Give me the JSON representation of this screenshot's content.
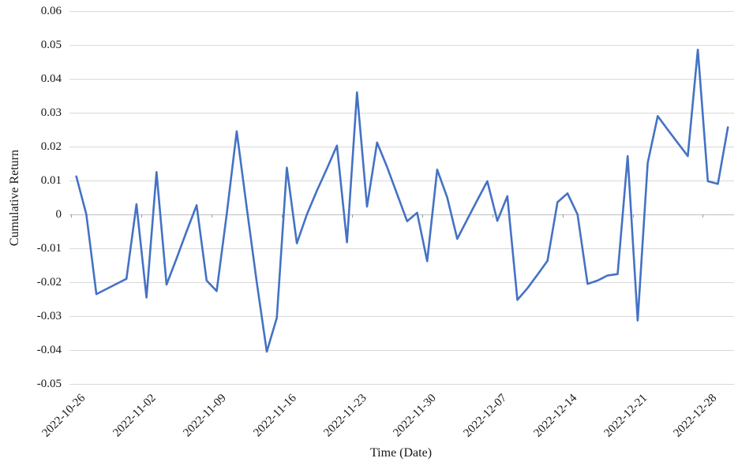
{
  "chart_data": {
    "type": "line",
    "title": "",
    "xlabel": "Time (Date)",
    "ylabel": "Cumulative Return",
    "legend": "none",
    "grid": "horizontal",
    "ylim": [
      -0.05,
      0.06
    ],
    "ytick_step": 0.01,
    "y_tick_labels": [
      "0.06",
      "0.05",
      "0.04",
      "0.03",
      "0.02",
      "0.01",
      "0",
      "-0.01",
      "-0.02",
      "-0.03",
      "-0.04",
      "-0.05"
    ],
    "x_tick_labels": [
      "2022-10-26",
      "2022-11-02",
      "2022-11-09",
      "2022-11-16",
      "2022-11-23",
      "2022-11-30",
      "2022-12-07",
      "2022-12-14",
      "2022-12-21",
      "2022-12-28"
    ],
    "line_color": "#4472C4",
    "gridline_color": "#D9D9D9",
    "zero_axis_color": "#BFBFBF",
    "background": "#FFFFFF",
    "x": [
      "2022-10-26",
      "2022-10-27",
      "2022-10-28",
      "2022-10-29",
      "2022-10-30",
      "2022-10-31",
      "2022-11-01",
      "2022-11-02",
      "2022-11-03",
      "2022-11-04",
      "2022-11-05",
      "2022-11-06",
      "2022-11-07",
      "2022-11-08",
      "2022-11-09",
      "2022-11-10",
      "2022-11-11",
      "2022-11-12",
      "2022-11-13",
      "2022-11-14",
      "2022-11-15",
      "2022-11-16",
      "2022-11-17",
      "2022-11-18",
      "2022-11-19",
      "2022-11-20",
      "2022-11-21",
      "2022-11-22",
      "2022-11-23",
      "2022-11-24",
      "2022-11-25",
      "2022-11-26",
      "2022-11-27",
      "2022-11-28",
      "2022-11-29",
      "2022-11-30",
      "2022-12-01",
      "2022-12-02",
      "2022-12-03",
      "2022-12-04",
      "2022-12-05",
      "2022-12-06",
      "2022-12-07",
      "2022-12-08",
      "2022-12-09",
      "2022-12-10",
      "2022-12-11",
      "2022-12-12",
      "2022-12-13",
      "2022-12-14",
      "2022-12-15",
      "2022-12-16",
      "2022-12-17",
      "2022-12-18",
      "2022-12-19",
      "2022-12-20",
      "2022-12-21",
      "2022-12-22",
      "2022-12-23",
      "2022-12-24",
      "2022-12-25",
      "2022-12-26",
      "2022-12-27",
      "2022-12-28",
      "2022-12-29",
      "2022-12-30"
    ],
    "series": [
      {
        "name": "Cumulative Return",
        "values": [
          0.0112,
          0.0,
          -0.0235,
          -0.022,
          -0.0205,
          -0.019,
          0.003,
          -0.0245,
          0.0125,
          -0.0207,
          -0.013,
          -0.005,
          0.0027,
          -0.0195,
          -0.0226,
          0.0,
          0.0245,
          0.002,
          -0.02,
          -0.0405,
          -0.0305,
          0.0138,
          -0.0085,
          0.0,
          0.007,
          0.0135,
          0.0203,
          -0.0082,
          0.036,
          0.0023,
          0.0212,
          0.014,
          0.006,
          -0.002,
          0.0005,
          -0.0138,
          0.0132,
          0.005,
          -0.0072,
          -0.0015,
          0.0042,
          0.0098,
          -0.0019,
          0.0054,
          -0.0252,
          -0.0218,
          -0.0178,
          -0.0137,
          0.0036,
          0.0062,
          0.0,
          -0.0205,
          -0.0195,
          -0.018,
          -0.0176,
          0.0172,
          -0.0313,
          0.0152,
          0.029,
          0.025,
          0.0211,
          0.0172,
          0.0486,
          0.0098,
          0.009,
          0.0257
        ]
      }
    ]
  }
}
